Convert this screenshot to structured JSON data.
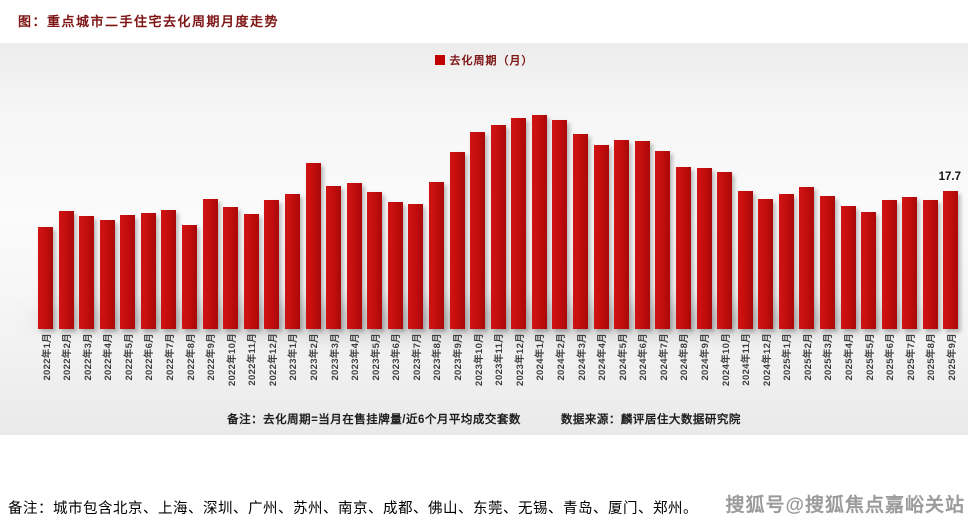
{
  "title": "图：重点城市二手住宅去化周期月度走势",
  "chart_data": {
    "type": "bar",
    "title": "重点城市二手住宅去化周期月度走势",
    "legend": "去化周期（月）",
    "unit": "月",
    "bar_color": "#C00D0D",
    "ylim": [
      0,
      30
    ],
    "grid": false,
    "legend_position": "top-center",
    "categories": [
      "2022年1月",
      "2022年2月",
      "2022年3月",
      "2022年4月",
      "2022年5月",
      "2022年6月",
      "2022年7月",
      "2022年8月",
      "2022年9月",
      "2022年10月",
      "2022年11月",
      "2022年12月",
      "2023年1月",
      "2023年2月",
      "2023年3月",
      "2023年4月",
      "2023年5月",
      "2023年6月",
      "2023年7月",
      "2023年8月",
      "2023年9月",
      "2023年10月",
      "2023年11月",
      "2023年12月",
      "2024年1月",
      "2024年2月",
      "2024年3月",
      "2024年4月",
      "2024年5月",
      "2024年6月",
      "2024年7月",
      "2024年8月",
      "2024年9月",
      "2024年10月",
      "2024年11月",
      "2024年12月",
      "2025年1月",
      "2025年2月",
      "2025年3月",
      "2025年4月",
      "2025年5月",
      "2025年6月",
      "2025年7月",
      "2025年8月",
      "2025年9月"
    ],
    "values": [
      13.1,
      15.1,
      14.5,
      14.0,
      14.6,
      14.9,
      15.3,
      13.3,
      16.7,
      15.7,
      14.8,
      16.6,
      17.3,
      21.3,
      18.3,
      18.7,
      17.6,
      16.3,
      16.0,
      18.9,
      22.7,
      25.3,
      26.2,
      27.1,
      27.5,
      26.8,
      25.0,
      23.6,
      24.2,
      24.1,
      22.8,
      20.8,
      20.6,
      20.1,
      17.7,
      16.7,
      17.3,
      18.2,
      17.1,
      15.8,
      15.0,
      16.5,
      16.9,
      16.5,
      17.7
    ],
    "data_labels": [
      {
        "index": 44,
        "text": "17.7"
      }
    ]
  },
  "notes": {
    "formula": "备注：去化周期=当月在售挂牌量/近6个月平均成交套数",
    "source": "数据来源：麟评居住大数据研究院",
    "cities": "备注：城市包含北京、上海、深圳、广州、苏州、南京、成都、佛山、东莞、无锡、青岛、厦门、郑州。"
  },
  "watermark": "搜狐号@搜狐焦点嘉峪关站"
}
